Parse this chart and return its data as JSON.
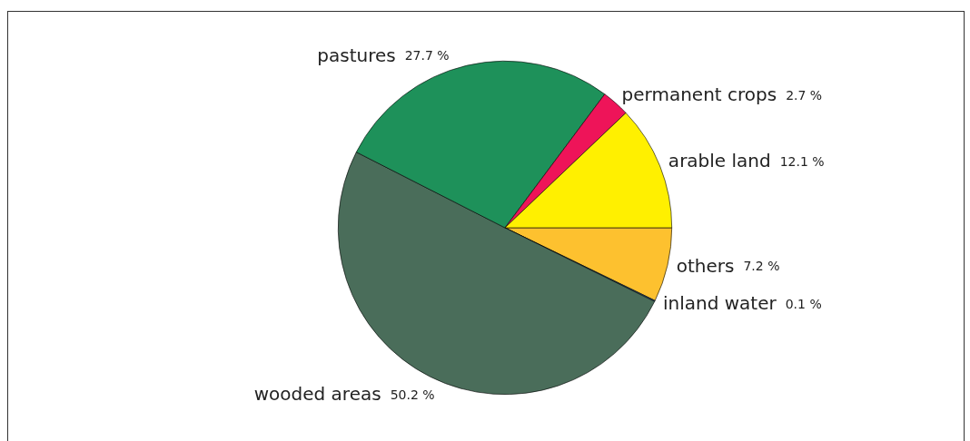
{
  "chart_data": {
    "type": "pie",
    "categories": [
      "others",
      "inland water",
      "wooded areas",
      "pastures",
      "permanent crops",
      "arable land"
    ],
    "values": [
      7.2,
      0.1,
      50.2,
      27.7,
      2.7,
      12.1
    ],
    "colors": [
      "#fdc12f",
      "#2f5f8a",
      "#4a6d5a",
      "#1e915a",
      "#ee1459",
      "#fff000"
    ],
    "value_labels": [
      "7.2 %",
      "0.1 %",
      "50.2 %",
      "27.7 %",
      "2.7 %",
      "12.1 %"
    ],
    "legend": false
  }
}
